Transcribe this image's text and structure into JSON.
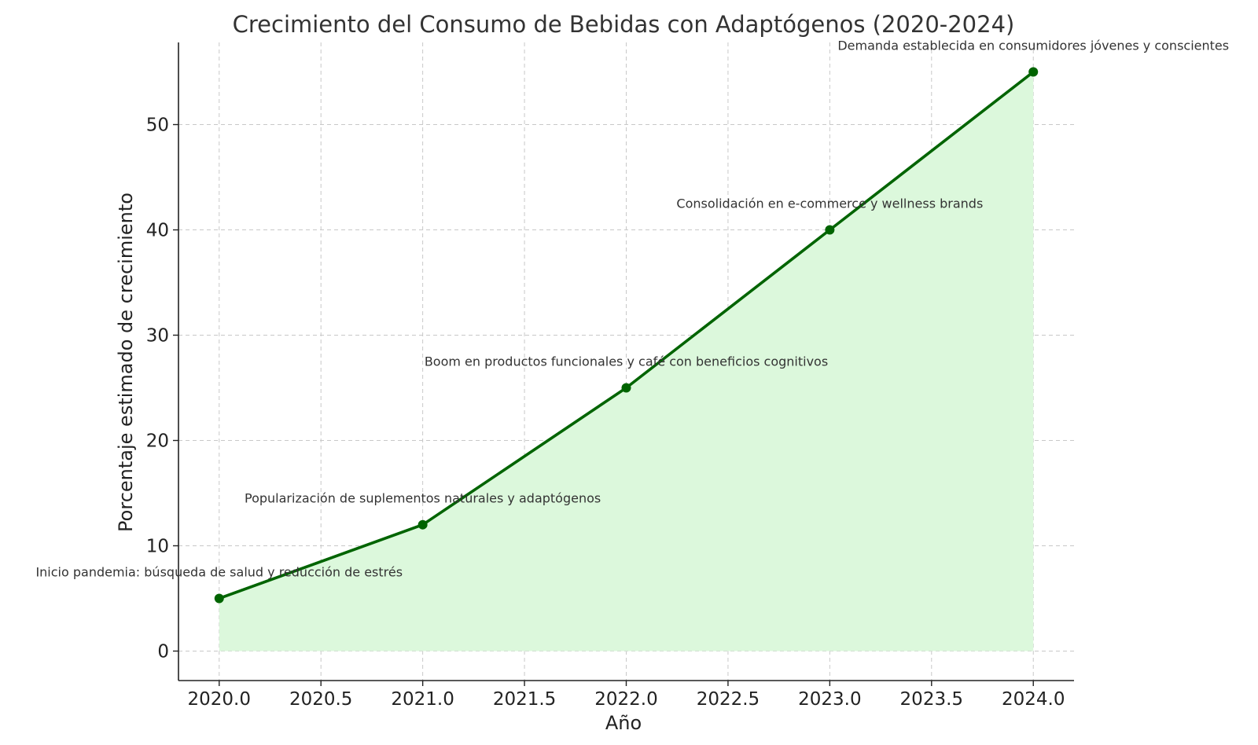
{
  "chart_data": {
    "type": "line",
    "title": "Crecimiento del Consumo de Bebidas con Adaptógenos (2020-2024)",
    "xlabel": "Año",
    "ylabel": "Porcentaje estimado de crecimiento",
    "x": [
      2020,
      2021,
      2022,
      2023,
      2024
    ],
    "series": [
      {
        "values": [
          5,
          12,
          25,
          40,
          55
        ]
      }
    ],
    "xlim": [
      2019.8,
      2024.2
    ],
    "ylim": [
      -2.8,
      57.8
    ],
    "xticks": [
      2020.0,
      2020.5,
      2021.0,
      2021.5,
      2022.0,
      2022.5,
      2023.0,
      2023.5,
      2024.0
    ],
    "xtick_labels": [
      "2020.0",
      "2020.5",
      "2021.0",
      "2021.5",
      "2022.0",
      "2022.5",
      "2023.0",
      "2023.5",
      "2024.0"
    ],
    "yticks": [
      0,
      10,
      20,
      30,
      40,
      50
    ],
    "ytick_labels": [
      "0",
      "10",
      "20",
      "30",
      "40",
      "50"
    ],
    "grid": true,
    "area_fill": true,
    "colors": {
      "line": "#006400",
      "fill": "#dcf8dc"
    },
    "annotations": [
      {
        "x": 2020,
        "y": 5,
        "text": "Inicio pandemia: búsqueda de salud y reducción de estrés"
      },
      {
        "x": 2021,
        "y": 12,
        "text": "Popularización de suplementos naturales y adaptógenos"
      },
      {
        "x": 2022,
        "y": 25,
        "text": "Boom en productos funcionales y café con beneficios cognitivos"
      },
      {
        "x": 2023,
        "y": 40,
        "text": "Consolidación en e-commerce y wellness brands"
      },
      {
        "x": 2024,
        "y": 55,
        "text": "Demanda establecida en consumidores jóvenes y conscientes"
      }
    ]
  }
}
